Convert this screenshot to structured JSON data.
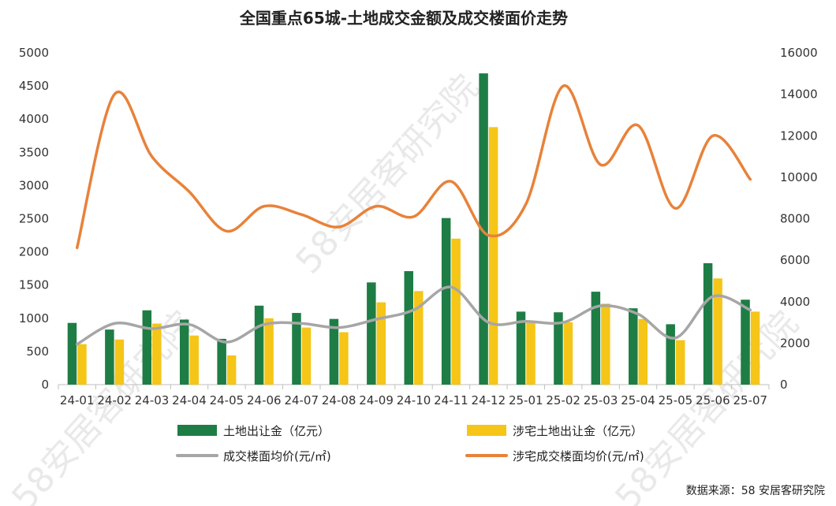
{
  "chart_data": {
    "type": "bar",
    "title": "全国重点65城-土地成交金额及成交楼面价走势",
    "categories": [
      "24-01",
      "24-02",
      "24-03",
      "24-04",
      "24-05",
      "24-06",
      "24-07",
      "24-08",
      "24-09",
      "24-10",
      "24-11",
      "24-12",
      "25-01",
      "25-02",
      "25-03",
      "25-04",
      "25-05",
      "25-06",
      "25-07"
    ],
    "y_left": {
      "min": 0,
      "max": 5000,
      "ticks": [
        0,
        500,
        1000,
        1500,
        2000,
        2500,
        3000,
        3500,
        4000,
        4500,
        5000
      ]
    },
    "y_right": {
      "min": 0,
      "max": 16000,
      "ticks": [
        0,
        2000,
        4000,
        6000,
        8000,
        10000,
        12000,
        14000,
        16000
      ]
    },
    "grid": false,
    "legend_position": "bottom",
    "series": [
      {
        "name": "土地出让金（亿元）",
        "type": "bar",
        "axis": "left",
        "color": "#1e7d45",
        "values": [
          930,
          830,
          1120,
          980,
          690,
          1190,
          1080,
          990,
          1540,
          1710,
          2510,
          4690,
          1100,
          1090,
          1400,
          1150,
          910,
          1830,
          1280
        ]
      },
      {
        "name": "涉宅土地出让金（亿元）",
        "type": "bar",
        "axis": "left",
        "color": "#f5c518",
        "values": [
          610,
          680,
          920,
          740,
          440,
          1000,
          860,
          790,
          1240,
          1410,
          2200,
          3880,
          960,
          940,
          1220,
          990,
          670,
          1600,
          1100
        ]
      },
      {
        "name": "成交楼面均价(元/㎡)",
        "type": "line",
        "axis": "right",
        "color": "#a6a6a6",
        "values": [
          1950,
          2950,
          2700,
          2900,
          2050,
          2900,
          2950,
          2750,
          3150,
          3600,
          4700,
          3000,
          3050,
          3000,
          3800,
          3400,
          2250,
          4250,
          3600
        ]
      },
      {
        "name": "涉宅成交楼面均价(元/㎡)",
        "type": "line",
        "axis": "right",
        "color": "#e8823a",
        "values": [
          6600,
          14000,
          11000,
          9300,
          7400,
          8600,
          8200,
          7600,
          8600,
          8100,
          9800,
          7200,
          8700,
          14400,
          10600,
          12500,
          8500,
          12000,
          9900
        ]
      }
    ]
  },
  "source": "数据来源：58 安居客研究院",
  "watermark": "58安居客研究院"
}
